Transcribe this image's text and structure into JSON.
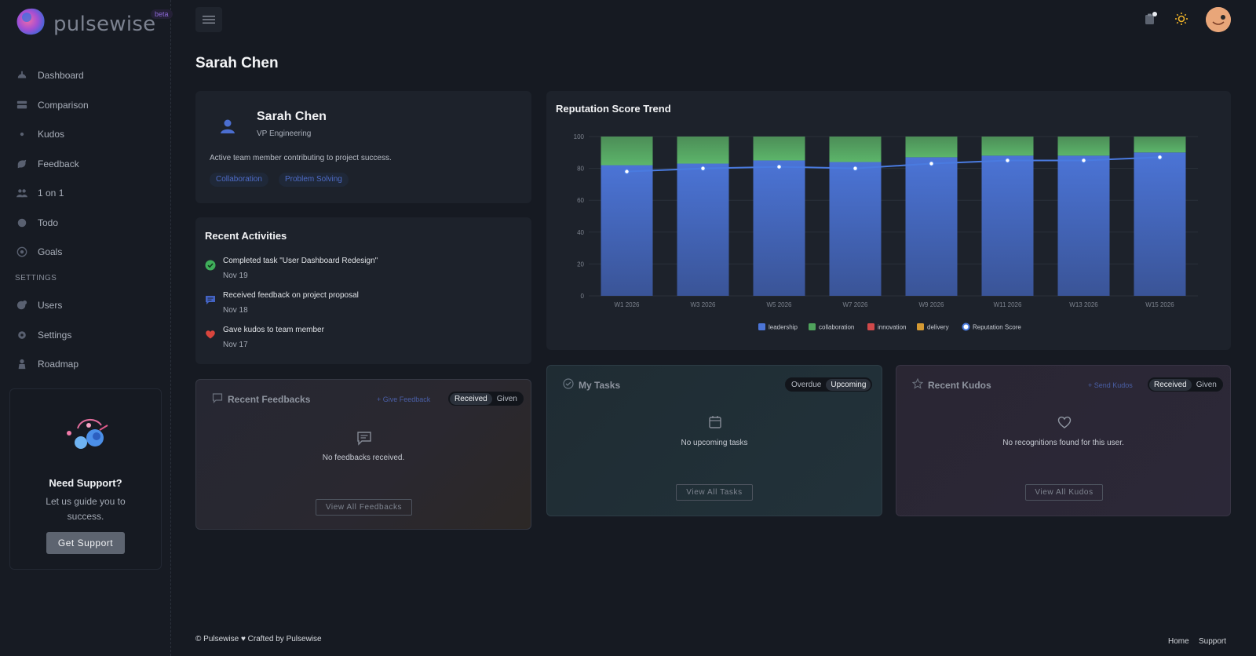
{
  "app": {
    "name": "pulsewise",
    "badge": "beta"
  },
  "sidebar": {
    "items": [
      {
        "label": "Dashboard",
        "icon": "dashboard-icon"
      },
      {
        "label": "Comparison",
        "icon": "comparison-icon"
      },
      {
        "label": "Kudos",
        "icon": "kudos-icon"
      },
      {
        "label": "Feedback",
        "icon": "feedback-icon"
      },
      {
        "label": "1 on 1",
        "icon": "people-icon"
      },
      {
        "label": "Todo",
        "icon": "todo-icon"
      },
      {
        "label": "Goals",
        "icon": "goals-icon"
      }
    ],
    "settings_heading": "SETTINGS",
    "settings_items": [
      {
        "label": "Users",
        "icon": "users-icon"
      },
      {
        "label": "Settings",
        "icon": "settings-icon"
      },
      {
        "label": "Roadmap",
        "icon": "roadmap-icon"
      }
    ],
    "support": {
      "title": "Need Support?",
      "text": "Let us guide you to success.",
      "button": "Get Support"
    }
  },
  "page": {
    "title": "Sarah Chen"
  },
  "profile": {
    "name": "Sarah Chen",
    "role": "VP Engineering",
    "description": "Active team member contributing to project success.",
    "tags": [
      "Collaboration",
      "Problem Solving"
    ]
  },
  "activities": {
    "title": "Recent Activities",
    "items": [
      {
        "title": "Completed task \"User Dashboard Redesign\"",
        "date": "Nov 19",
        "icon": "check-circle-icon",
        "color": "#3fae5a"
      },
      {
        "title": "Received feedback on project proposal",
        "date": "Nov 18",
        "icon": "message-icon",
        "color": "#4363c4"
      },
      {
        "title": "Gave kudos to team member",
        "date": "Nov 17",
        "icon": "heart-icon",
        "color": "#d9453d"
      }
    ]
  },
  "feedbacks": {
    "title": "Recent Feedbacks",
    "link": "+ Give Feedback",
    "toggle": [
      "Received",
      "Given"
    ],
    "active": "Received",
    "empty": "No feedbacks received.",
    "button": "View All Feedbacks"
  },
  "tasks": {
    "title": "My Tasks",
    "toggle": [
      "Overdue",
      "Upcoming"
    ],
    "active": "Upcoming",
    "empty": "No upcoming tasks",
    "button": "View All Tasks"
  },
  "kudos": {
    "title": "Recent Kudos",
    "link": "+ Send Kudos",
    "toggle": [
      "Received",
      "Given"
    ],
    "active": "Received",
    "empty": "No recognitions found for this user.",
    "button": "View All Kudos"
  },
  "chart_data": {
    "type": "bar",
    "title": "Reputation Score Trend",
    "categories": [
      "W1 2026",
      "W3 2026",
      "W5 2026",
      "W7 2026",
      "W9 2026",
      "W11 2026",
      "W13 2026",
      "W15 2026"
    ],
    "ylim": [
      0,
      100
    ],
    "yticks": [
      0,
      20,
      40,
      60,
      80,
      100
    ],
    "grid": true,
    "legend": "bottom",
    "series": [
      {
        "name": "leadership",
        "color": "#4b74d6",
        "values": [
          82,
          83,
          85,
          84,
          87,
          88,
          88,
          90
        ]
      },
      {
        "name": "collaboration",
        "color": "#4fa35c",
        "values": [
          18,
          17,
          15,
          16,
          13,
          12,
          12,
          10
        ]
      },
      {
        "name": "innovation",
        "color": "#d0494a",
        "values": [
          0,
          0,
          0,
          0,
          0,
          0,
          0,
          0
        ]
      },
      {
        "name": "delivery",
        "color": "#d59a33",
        "values": [
          0,
          0,
          0,
          0,
          0,
          0,
          0,
          0
        ]
      }
    ],
    "line": {
      "name": "Reputation Score",
      "color": "#4a7be0",
      "values": [
        78,
        80,
        81,
        80,
        83,
        85,
        85,
        87
      ]
    }
  },
  "footer": {
    "left": "© Pulsewise ♥ Crafted by Pulsewise",
    "links": [
      "Home",
      "Support"
    ]
  }
}
